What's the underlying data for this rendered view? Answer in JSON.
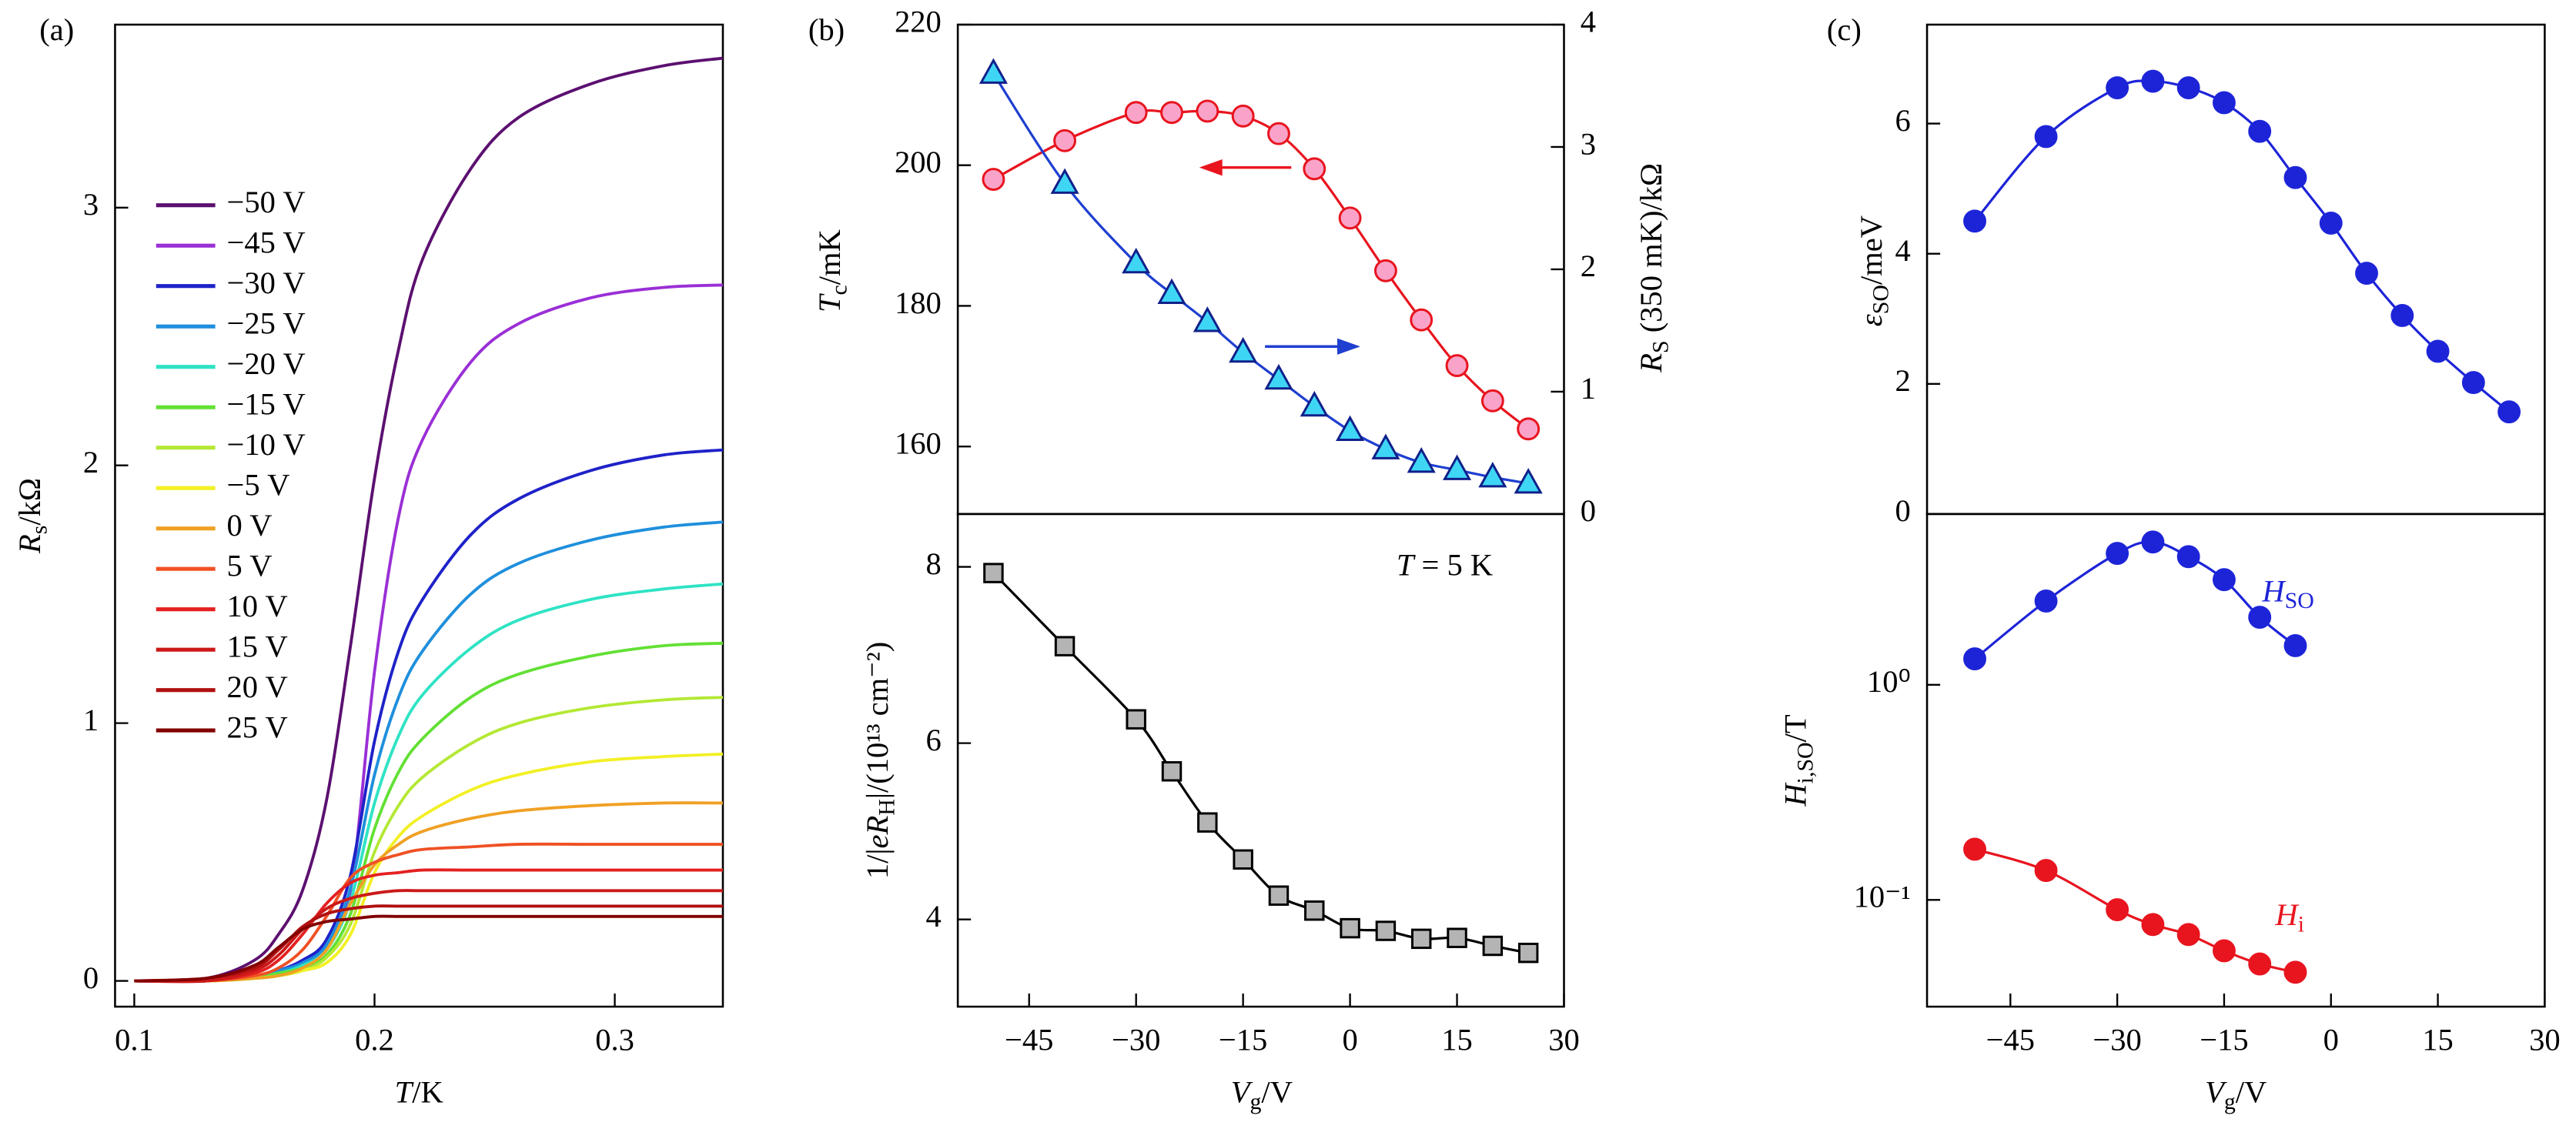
{
  "chart_data": [
    {
      "type": "line",
      "label": "(a)",
      "xlabel": [
        "T",
        "/K"
      ],
      "ylabel": [
        "R",
        "s",
        "/kΩ"
      ],
      "xlim": [
        0.092,
        0.345
      ],
      "ylim": [
        -0.1,
        3.71
      ],
      "xticks": [
        0.1,
        0.2,
        0.3
      ],
      "yticks": [
        0,
        1,
        2,
        3
      ],
      "legend": "upper left",
      "x": [
        0.1,
        0.13,
        0.15,
        0.16,
        0.17,
        0.18,
        0.19,
        0.2,
        0.21,
        0.22,
        0.24,
        0.26,
        0.29,
        0.32,
        0.345
      ],
      "series": [
        {
          "name": "−50 V",
          "color": "#5c1070",
          "values": [
            0,
            0.01,
            0.08,
            0.18,
            0.35,
            0.7,
            1.3,
            1.95,
            2.45,
            2.8,
            3.15,
            3.35,
            3.48,
            3.55,
            3.58
          ]
        },
        {
          "name": "−45 V",
          "color": "#9a2fd6",
          "values": [
            0,
            0,
            0.02,
            0.04,
            0.08,
            0.15,
            0.35,
            1.2,
            1.8,
            2.1,
            2.4,
            2.55,
            2.65,
            2.69,
            2.7
          ]
        },
        {
          "name": "−30 V",
          "color": "#1e22c8",
          "values": [
            0,
            0,
            0.02,
            0.04,
            0.08,
            0.16,
            0.41,
            0.93,
            1.28,
            1.48,
            1.73,
            1.87,
            1.98,
            2.04,
            2.06
          ]
        },
        {
          "name": "−25 V",
          "color": "#1e8fdc",
          "values": [
            0,
            0,
            0.02,
            0.04,
            0.07,
            0.14,
            0.36,
            0.8,
            1.1,
            1.28,
            1.5,
            1.62,
            1.71,
            1.76,
            1.78
          ]
        },
        {
          "name": "−20 V",
          "color": "#2fe3c4",
          "values": [
            0,
            0,
            0.02,
            0.03,
            0.06,
            0.12,
            0.31,
            0.69,
            0.95,
            1.11,
            1.29,
            1.4,
            1.48,
            1.52,
            1.54
          ]
        },
        {
          "name": "−15 V",
          "color": "#62e034",
          "values": [
            0,
            0,
            0.01,
            0.03,
            0.05,
            0.1,
            0.26,
            0.59,
            0.81,
            0.94,
            1.1,
            1.19,
            1.26,
            1.3,
            1.31
          ]
        },
        {
          "name": "−10 V",
          "color": "#b4e834",
          "values": [
            0,
            0,
            0.01,
            0.02,
            0.04,
            0.09,
            0.22,
            0.5,
            0.68,
            0.79,
            0.92,
            1.0,
            1.06,
            1.09,
            1.1
          ]
        },
        {
          "name": "−5 V",
          "color": "#f2f024",
          "values": [
            0,
            0,
            0.01,
            0.02,
            0.04,
            0.07,
            0.18,
            0.42,
            0.56,
            0.64,
            0.74,
            0.8,
            0.85,
            0.87,
            0.88
          ]
        },
        {
          "name": "0 V",
          "color": "#f0a024",
          "values": [
            0,
            0,
            0.01,
            0.02,
            0.05,
            0.12,
            0.3,
            0.45,
            0.53,
            0.58,
            0.63,
            0.66,
            0.68,
            0.69,
            0.69
          ]
        },
        {
          "name": "5 V",
          "color": "#f05024",
          "values": [
            0,
            0,
            0.02,
            0.05,
            0.12,
            0.25,
            0.4,
            0.46,
            0.49,
            0.51,
            0.52,
            0.53,
            0.53,
            0.53,
            0.53
          ]
        },
        {
          "name": "10 V",
          "color": "#e42020",
          "values": [
            0,
            0,
            0.03,
            0.08,
            0.18,
            0.3,
            0.38,
            0.41,
            0.42,
            0.43,
            0.43,
            0.43,
            0.43,
            0.43,
            0.43
          ]
        },
        {
          "name": "15 V",
          "color": "#cc1818",
          "values": [
            0,
            0,
            0.04,
            0.1,
            0.2,
            0.28,
            0.32,
            0.34,
            0.35,
            0.35,
            0.35,
            0.35,
            0.35,
            0.35,
            0.35
          ]
        },
        {
          "name": "20 V",
          "color": "#b01010",
          "values": [
            0,
            0.01,
            0.05,
            0.12,
            0.21,
            0.26,
            0.28,
            0.29,
            0.29,
            0.29,
            0.29,
            0.29,
            0.29,
            0.29,
            0.29
          ]
        },
        {
          "name": "25 V",
          "color": "#820000",
          "values": [
            0,
            0.01,
            0.06,
            0.13,
            0.2,
            0.23,
            0.24,
            0.25,
            0.25,
            0.25,
            0.25,
            0.25,
            0.25,
            0.25,
            0.25
          ]
        }
      ]
    },
    {
      "type": "line",
      "label": "(b)",
      "ylabel": [
        "T",
        "c",
        "/mK"
      ],
      "y2label": [
        "R",
        "S",
        " (350 mK)/kΩ"
      ],
      "xlim": [
        -55,
        30
      ],
      "ylim": [
        150.4,
        220
      ],
      "yticks": [
        160,
        180,
        200,
        220
      ],
      "y2lim": [
        0,
        4
      ],
      "y2ticks": [
        0,
        1,
        2,
        3,
        4
      ],
      "x": [
        -50,
        -40,
        -30,
        -25,
        -20,
        -15,
        -10,
        -5,
        0,
        5,
        10,
        15,
        20,
        25
      ],
      "series": [
        {
          "color": "#e8141e",
          "marker": "circle",
          "marker_fill": "#f9a3c9",
          "marker_stroke": "#e8141e",
          "axis": "y",
          "values": [
            198,
            203.5,
            207.5,
            207.5,
            207.7,
            207,
            204.5,
            199.5,
            192.5,
            185,
            178,
            171.5,
            166.5,
            162.5
          ]
        },
        {
          "color": "#1f3fd0",
          "marker": "triangle",
          "marker_fill": "#3fd6f6",
          "marker_stroke": "#10208a",
          "axis": "y2",
          "values": [
            3.6,
            2.7,
            2.05,
            1.8,
            1.57,
            1.32,
            1.1,
            0.88,
            0.68,
            0.53,
            0.42,
            0.36,
            0.3,
            0.25
          ]
        }
      ]
    },
    {
      "type": "line",
      "xlabel": [
        "V",
        "g",
        "/V"
      ],
      "ylabel": [
        "1/|",
        "eR",
        "H",
        "|/(10¹³ cm⁻²)"
      ],
      "annotation": [
        "T",
        " = 5 K"
      ],
      "xlim": [
        -55,
        30
      ],
      "ylim": [
        3.01,
        8.6
      ],
      "yticks": [
        4,
        6,
        8
      ],
      "xticks": [
        {
          "value": -45,
          "label": "−45"
        },
        {
          "value": -30,
          "label": "−30"
        },
        {
          "value": -15,
          "label": "−15"
        },
        0,
        15,
        30
      ],
      "x": [
        -50,
        -40,
        -30,
        -25,
        -20,
        -15,
        -10,
        -5,
        0,
        5,
        10,
        15,
        20,
        25
      ],
      "series": [
        {
          "color": "#000000",
          "marker": "square",
          "marker_fill": "#b4b4b4",
          "marker_stroke": "#000000",
          "values": [
            7.93,
            7.1,
            6.27,
            5.68,
            5.1,
            4.68,
            4.27,
            4.1,
            3.9,
            3.87,
            3.78,
            3.79,
            3.7,
            3.62
          ]
        }
      ]
    },
    {
      "type": "line",
      "label": "(c)",
      "ylabel": [
        "ε",
        "SO",
        "/meV"
      ],
      "xlim": [
        -56.7,
        30
      ],
      "ylim": [
        0,
        7.52
      ],
      "yticks": [
        0,
        2,
        4,
        6
      ],
      "x": [
        -50,
        -40,
        -30,
        -25,
        -20,
        -15,
        -10,
        -5,
        0,
        5,
        10,
        15,
        20,
        25
      ],
      "series": [
        {
          "color": "#1d24d8",
          "marker": "circle",
          "marker_fill": "#1d24d8",
          "marker_stroke": "#1d24d8",
          "values": [
            4.5,
            5.8,
            6.55,
            6.65,
            6.55,
            6.32,
            5.88,
            5.17,
            4.47,
            3.7,
            3.05,
            2.5,
            2.02,
            1.57
          ]
        }
      ]
    },
    {
      "type": "line",
      "log_y": true,
      "xlabel": [
        "V",
        "g",
        "/V"
      ],
      "ylabel": [
        "H",
        "i,SO",
        "/T"
      ],
      "annotations": [
        [
          "H",
          "SO"
        ],
        [
          "H",
          "i"
        ]
      ],
      "xlim": [
        -56.7,
        30
      ],
      "ylim": [
        0.0319,
        6.22
      ],
      "yticks": [
        {
          "value": 1,
          "label": "10⁰"
        },
        {
          "value": 0.1,
          "label": "10⁻¹"
        }
      ],
      "xticks": [
        {
          "value": -45,
          "label": "−45"
        },
        {
          "value": -30,
          "label": "−30"
        },
        {
          "value": -15,
          "label": "−15"
        },
        0,
        15,
        30
      ],
      "x": [
        -50,
        -40,
        -30,
        -25,
        -20,
        -15,
        -10,
        -5
      ],
      "series": [
        {
          "color": "#1d24d8",
          "marker": "circle",
          "marker_fill": "#1d24d8",
          "marker_stroke": "#1d24d8",
          "values": [
            1.32,
            2.45,
            4.08,
            4.61,
            3.94,
            3.08,
            2.06,
            1.52
          ]
        },
        {
          "color": "#e8141e",
          "marker": "circle",
          "marker_fill": "#e8141e",
          "marker_stroke": "#e8141e",
          "values": [
            0.172,
            0.137,
            0.09,
            0.0768,
            0.069,
            0.058,
            0.0504,
            0.0461
          ]
        }
      ]
    }
  ]
}
